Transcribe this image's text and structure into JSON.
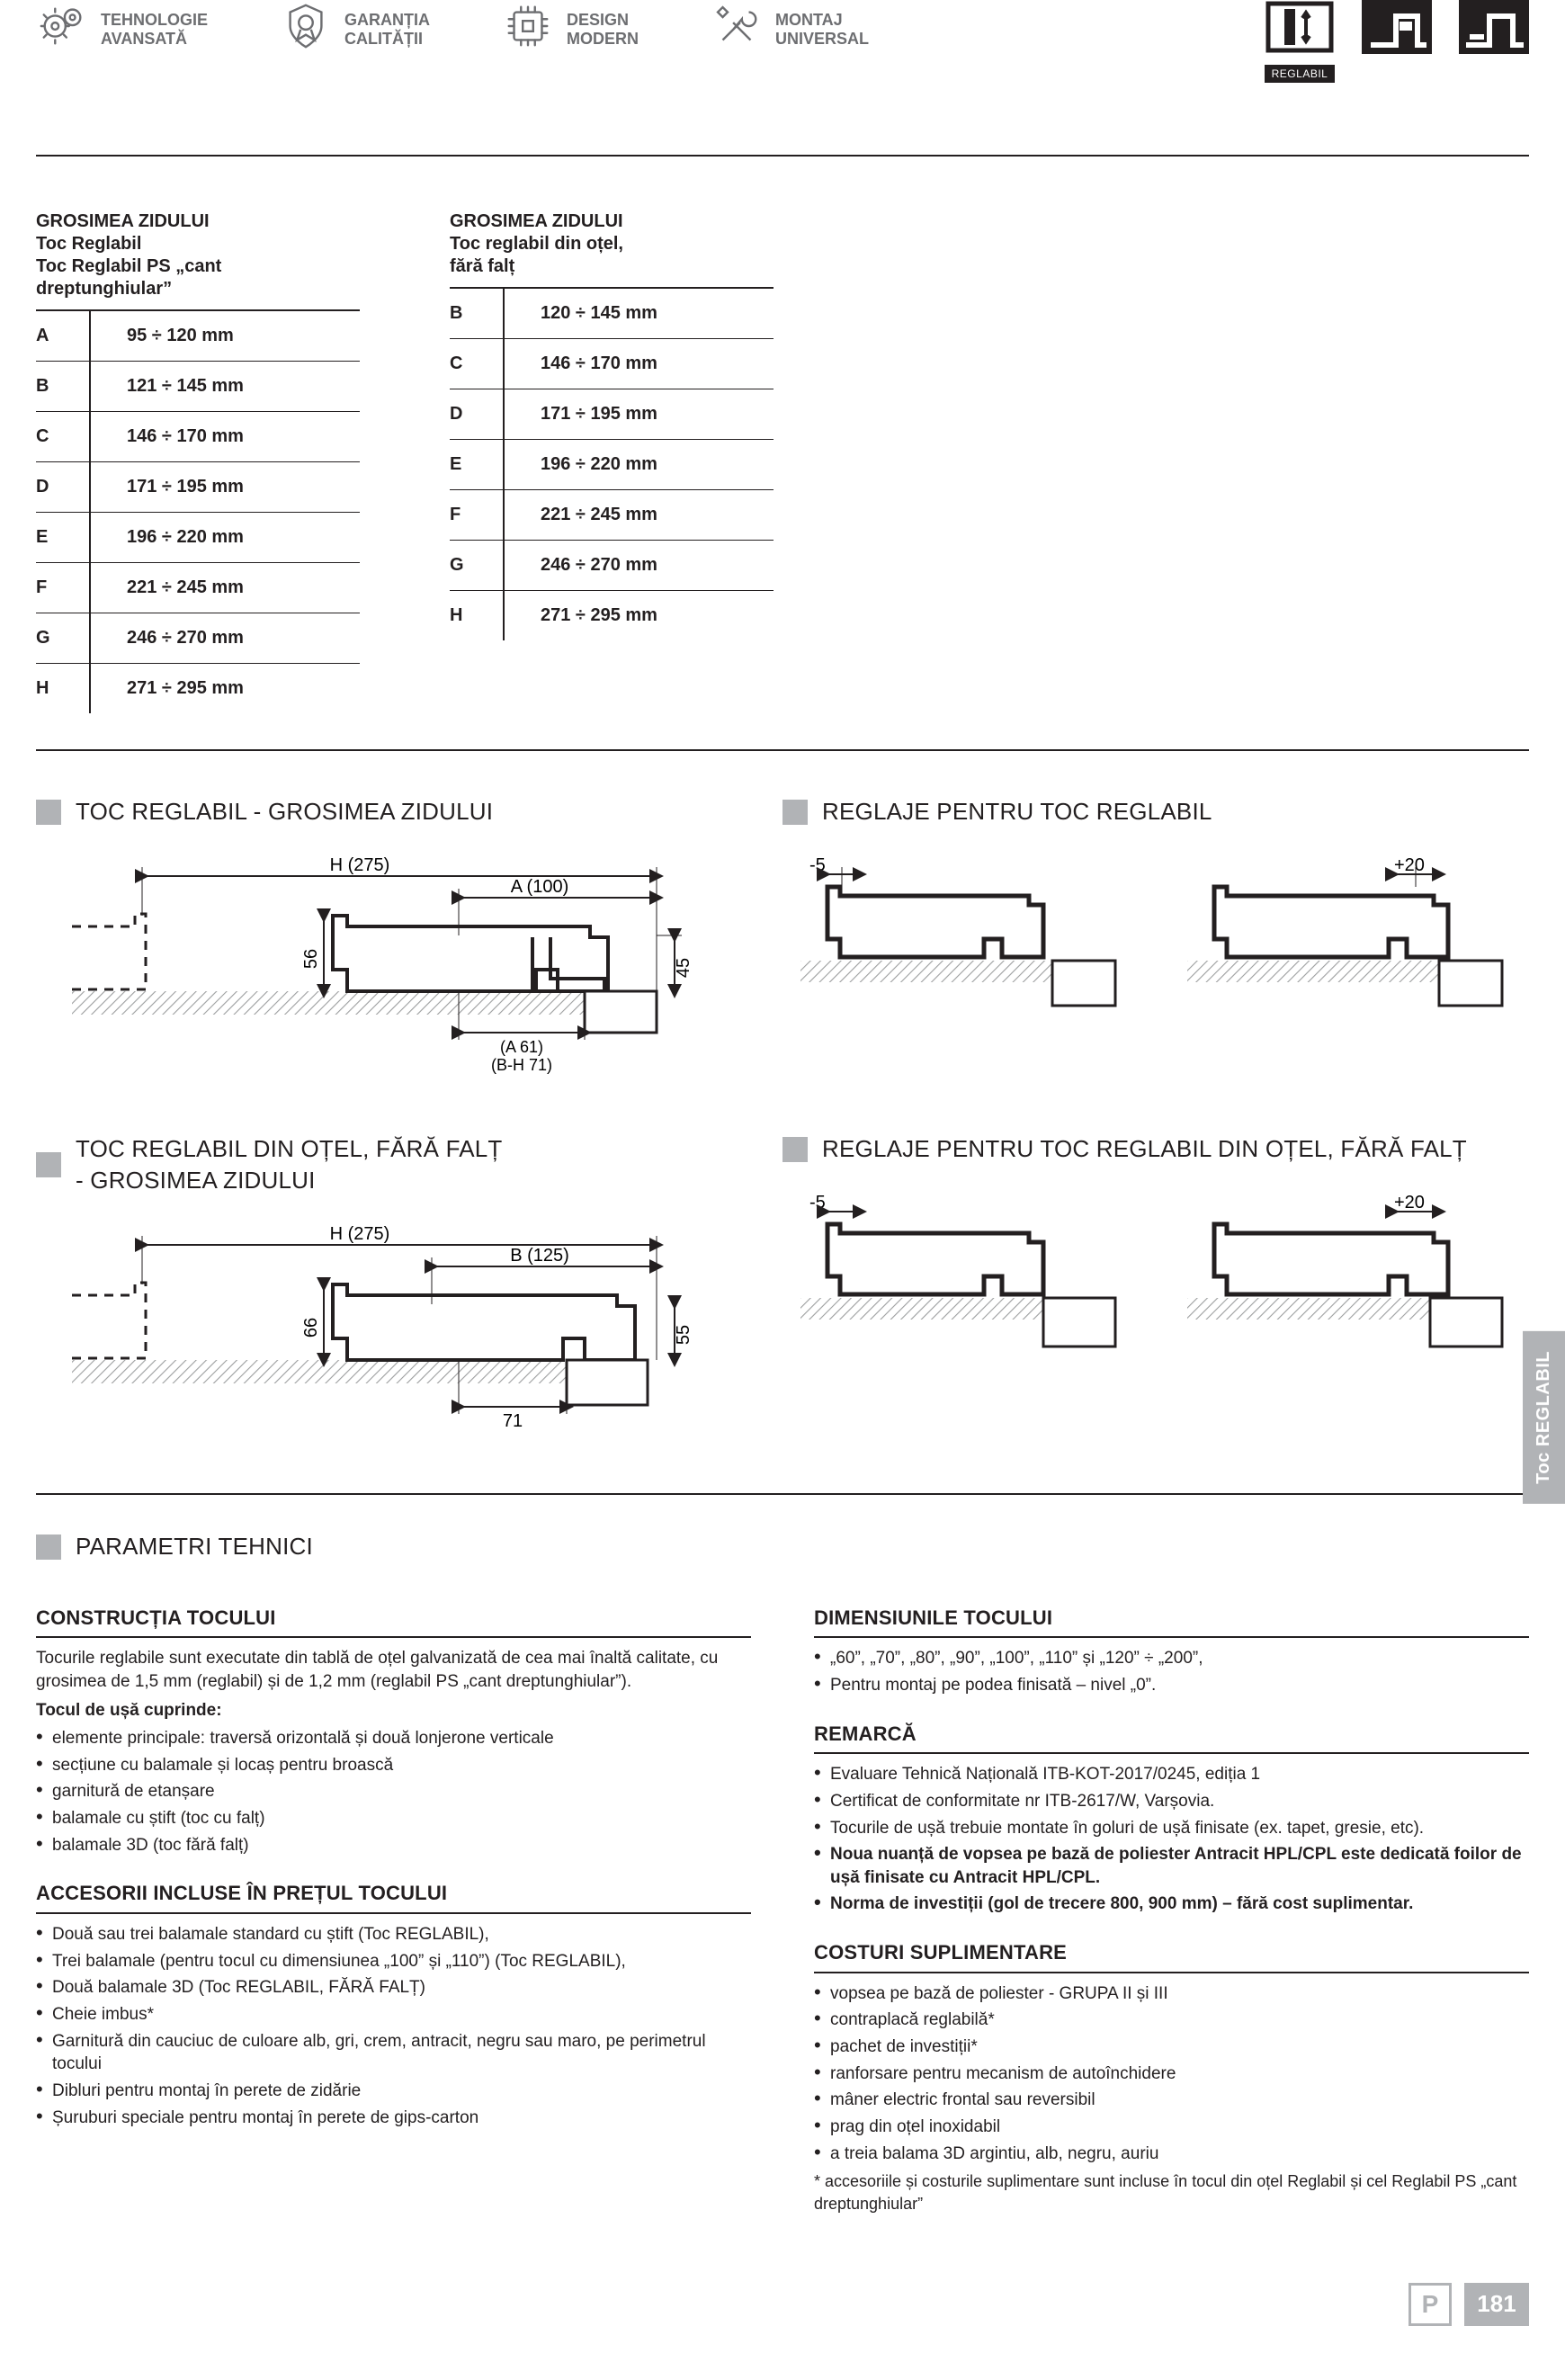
{
  "features": [
    {
      "line1": "TEHNOLOGIE",
      "line2": "AVANSATĂ"
    },
    {
      "line1": "GARANȚIA",
      "line2": "CALITĂȚII"
    },
    {
      "line1": "DESIGN",
      "line2": "MODERN"
    },
    {
      "line1": "MONTAJ",
      "line2": "UNIVERSAL"
    }
  ],
  "top_right_icons": {
    "reglabil_tag": "REGLABIL"
  },
  "table_left": {
    "title_l1": "GROSIMEA ZIDULUI",
    "title_l2": "Toc Reglabil",
    "title_l3": "Toc Reglabil PS „cant",
    "title_l4": "dreptunghiular”",
    "rows": [
      {
        "letter": "A",
        "val": "95 ÷ 120 mm"
      },
      {
        "letter": "B",
        "val": "121 ÷ 145 mm"
      },
      {
        "letter": "C",
        "val": "146 ÷ 170 mm"
      },
      {
        "letter": "D",
        "val": "171 ÷ 195 mm"
      },
      {
        "letter": "E",
        "val": "196 ÷ 220 mm"
      },
      {
        "letter": "F",
        "val": "221 ÷ 245 mm"
      },
      {
        "letter": "G",
        "val": "246 ÷ 270 mm"
      },
      {
        "letter": "H",
        "val": "271 ÷ 295 mm"
      }
    ]
  },
  "table_right": {
    "title_l1": "GROSIMEA ZIDULUI",
    "title_l2": "Toc reglabil din oțel,",
    "title_l3": "fără falț",
    "rows": [
      {
        "letter": "B",
        "val": "120 ÷ 145 mm"
      },
      {
        "letter": "C",
        "val": "146 ÷ 170 mm"
      },
      {
        "letter": "D",
        "val": "171 ÷ 195 mm"
      },
      {
        "letter": "E",
        "val": "196 ÷ 220 mm"
      },
      {
        "letter": "F",
        "val": "221 ÷ 245 mm"
      },
      {
        "letter": "G",
        "val": "246 ÷ 270 mm"
      },
      {
        "letter": "H",
        "val": "271 ÷ 295 mm"
      }
    ]
  },
  "diagrams": {
    "sec1_left": "TOC REGLABIL - GROSIMEA ZIDULUI",
    "sec1_right": "REGLAJE PENTRU TOC REGLABIL",
    "sec2_left_l1": "TOC REGLABIL DIN OȚEL, FĂRĂ FALȚ",
    "sec2_left_l2": "- GROSIMEA ZIDULUI",
    "sec2_right": "REGLAJE PENTRU TOC REGLABIL DIN OȚEL, FĂRĂ FALȚ",
    "d1": {
      "H": "H (275)",
      "A": "A (100)",
      "h56": "56",
      "h45": "45",
      "tail1": "(A 61)",
      "tail2": "(B-H 71)"
    },
    "d2": {
      "minus5": "-5",
      "plus20": "+20"
    },
    "d3": {
      "H": "H (275)",
      "B": "B (125)",
      "h66": "66",
      "h55": "55",
      "w71": "71"
    },
    "d4": {
      "minus5": "-5",
      "plus20": "+20"
    }
  },
  "params_heading": "PARAMETRI TEHNICI",
  "col_left": {
    "h1": "CONSTRUCȚIA TOCULUI",
    "p1": "Tocurile reglabile sunt executate din tablă de oțel galvanizată de cea mai înaltă calitate, cu grosimea de 1,5 mm (reglabil) și de 1,2 mm (reglabil PS „cant dreptunghiular”).",
    "p2b": "Tocul de ușă cuprinde:",
    "b1": "elemente principale: traversă orizontală și două lonjerone verticale",
    "b2": "secțiune cu balamale și locaș pentru broască",
    "b3": "garnitură de etanșare",
    "b4": "balamale cu știft (toc cu falț)",
    "b5": "balamale 3D (toc fără falț)",
    "h2": "ACCESORII INCLUSE ÎN PREȚUL TOCULUI",
    "a1": "Două sau trei balamale standard cu știft (Toc REGLABIL),",
    "a2": "Trei balamale (pentru tocul cu dimensiunea „100” și „110”) (Toc REGLABIL),",
    "a3": "Două balamale 3D (Toc REGLABIL, FĂRĂ FALȚ)",
    "a4": "Cheie imbus*",
    "a5": "Garnitură din cauciuc de culoare alb, gri, crem, antracit, negru sau maro, pe perimetrul tocului",
    "a6": "Dibluri pentru montaj în perete de zidărie",
    "a7": "Șuruburi speciale pentru montaj în perete de gips-carton"
  },
  "col_right": {
    "h1": "DIMENSIUNILE TOCULUI",
    "d1": "„60”, „70”, „80”, „90”, „100”, „110” și „120” ÷ „200”,",
    "d2": "Pentru montaj pe podea finisată – nivel „0”.",
    "h2": "REMARCĂ",
    "r1": "Evaluare Tehnică Națională ITB-KOT-2017/0245, ediția 1",
    "r2": "Certificat de conformitate nr ITB-2617/W, Varșovia.",
    "r3": "Tocurile de ușă trebuie montate în goluri de ușă finisate (ex. tapet, gresie, etc).",
    "r4b": "Noua nuanță de vopsea pe bază de poliester Antracit HPL/CPL este dedicată foilor de ușă finisate cu Antracit HPL/CPL.",
    "r5b": "Norma de investiții (gol de trecere 800, 900 mm) – fără cost suplimentar.",
    "h3": "COSTURI SUPLIMENTARE",
    "c1": "vopsea pe bază de poliester - GRUPA II și III",
    "c2": "contraplacă reglabilă*",
    "c3": "pachet de investiții*",
    "c4": "ranforsare pentru mecanism de autoînchidere",
    "c5": "mâner electric frontal sau reversibil",
    "c6": "prag din oțel inoxidabil",
    "c7": "a treia balama 3D argintiu, alb, negru, auriu",
    "foot": "* accesoriile și costurile suplimentare sunt incluse în tocul din oțel Reglabil și cel Reglabil PS „cant dreptunghiular”"
  },
  "side_tab": "Toc REGLABIL",
  "page_number": "181",
  "page_mark": "P",
  "colors": {
    "text": "#231f20",
    "gray": "#b1b3b6",
    "icon_gray": "#6d6e71",
    "hatch": "#9c9e9f"
  }
}
